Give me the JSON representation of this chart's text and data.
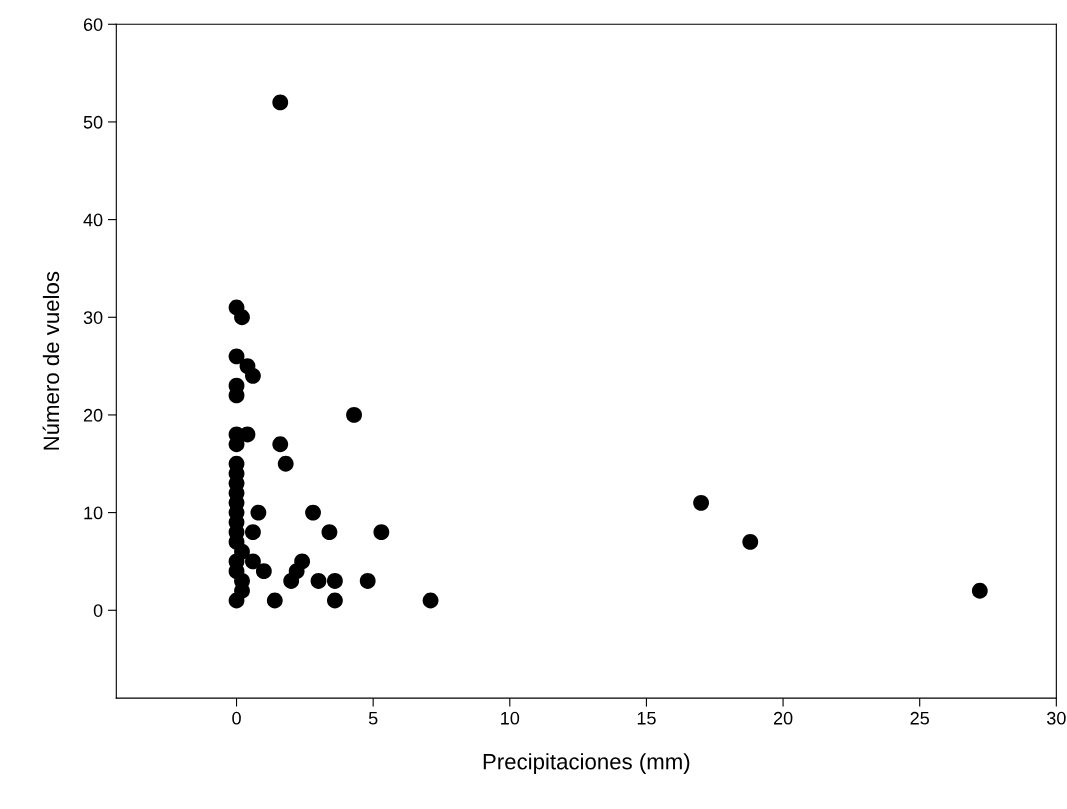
{
  "chart_data": {
    "type": "scatter",
    "xlabel": "Precipitaciones (mm)",
    "ylabel": "Número de vuelos",
    "x": [
      0,
      0,
      0,
      0,
      0,
      0,
      0,
      0,
      0,
      0,
      0,
      0,
      0,
      0,
      0,
      0,
      0,
      0,
      0.2,
      0.4,
      0.6,
      0.4,
      1.6,
      1.8,
      4.3,
      0.8,
      2.8,
      0.6,
      3.4,
      5.3,
      0.2,
      0.6,
      1.0,
      2.4,
      2.2,
      2.0,
      3.0,
      3.6,
      4.8,
      0.2,
      0.2,
      1.4,
      3.6,
      7.1,
      1.6,
      17,
      18.8,
      27.2
    ],
    "series": [
      {
        "color": "#000000",
        "values": [
          31,
          26,
          23,
          22,
          18,
          17,
          15,
          14,
          13,
          12,
          11,
          10,
          9,
          8,
          7,
          5,
          4,
          1,
          30,
          25,
          24,
          18,
          17,
          15,
          20,
          10,
          10,
          8,
          8,
          8,
          6,
          5,
          4,
          5,
          4,
          3,
          3,
          3,
          3,
          3,
          2,
          1,
          1,
          1,
          52,
          11,
          7,
          2
        ]
      }
    ],
    "marker": "circle",
    "grid": false,
    "legend": false,
    "xlim": [
      -4.4,
      30
    ],
    "xticks": [
      0,
      5,
      10,
      15,
      20,
      25,
      30
    ],
    "ylim": [
      -9,
      60
    ],
    "yticks": [
      0,
      10,
      20,
      30,
      40,
      50,
      60
    ]
  }
}
